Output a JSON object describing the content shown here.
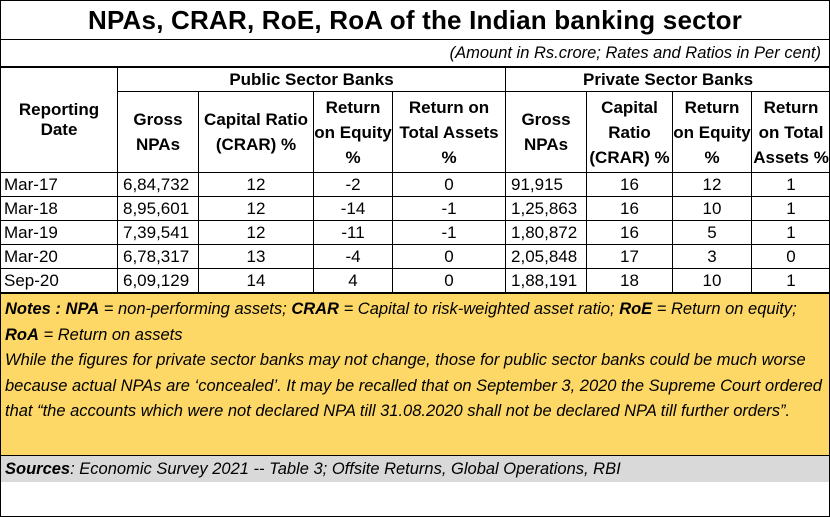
{
  "title": "NPAs, CRAR, RoE, RoA of the Indian banking sector",
  "units_note": "(Amount in Rs.crore; Rates and Ratios in Per cent)",
  "header": {
    "reporting_date": "Reporting Date",
    "public_group": "Public Sector Banks",
    "private_group": "Private Sector Banks",
    "public_cols": [
      "Gross NPAs",
      "Capital Ratio (CRAR) %",
      "Return on Equity %",
      "Return on Total Assets %"
    ],
    "private_cols": [
      "Gross NPAs",
      "Capital Ratio (CRAR) %",
      "Return on Equity %",
      "Return on Total Assets %"
    ]
  },
  "chart_data": {
    "type": "table",
    "title": "NPAs, CRAR, RoE, RoA of the Indian banking sector",
    "columns": [
      "Reporting Date",
      "PSB Gross NPAs",
      "PSB Capital Ratio (CRAR) %",
      "PSB Return on Equity %",
      "PSB Return on Total Assets %",
      "Pvt Gross NPAs",
      "Pvt Capital Ratio (CRAR) %",
      "Pvt Return on Equity %",
      "Pvt Return on Total Assets %"
    ],
    "rows": [
      [
        "Mar-17",
        "6,84,732",
        "12",
        "-2",
        "0",
        "91,915",
        "16",
        "12",
        "1"
      ],
      [
        "Mar-18",
        "8,95,601",
        "12",
        "-14",
        "-1",
        "1,25,863",
        "16",
        "10",
        "1"
      ],
      [
        "Mar-19",
        "7,39,541",
        "12",
        "-11",
        "-1",
        "1,80,872",
        "16",
        "5",
        "1"
      ],
      [
        "Mar-20",
        "6,78,317",
        "13",
        "-4",
        "0",
        "2,05,848",
        "17",
        "3",
        "0"
      ],
      [
        "Sep-20",
        "6,09,129",
        "14",
        "4",
        "0",
        "1,88,191",
        "18",
        "10",
        "1"
      ]
    ]
  },
  "notes": {
    "label": "Notes",
    "npa_abbr": "NPA",
    "npa_def": "= non-performing assets;",
    "crar_abbr": "CRAR",
    "crar_def": "= Capital to risk-weighted asset ratio;",
    "roe_abbr": "RoE",
    "roe_def": "= Return on equity;",
    "roa_abbr": "RoA",
    "roa_def": "= Return on assets",
    "paragraph": "While the figures for private sector banks may not change, those for public sector banks could be much worse because actual NPAs are ‘concealed’.  It may be recalled that on  September 3, 2020 the Supreme Court ordered that “the accounts which were not declared NPA till 31.08.2020 shall not be declared NPA till further orders”."
  },
  "sources": {
    "label": "Sources",
    "text": ": Economic Survey 2021 -- Table 3; Offsite Returns, Global Operations, RBI"
  }
}
